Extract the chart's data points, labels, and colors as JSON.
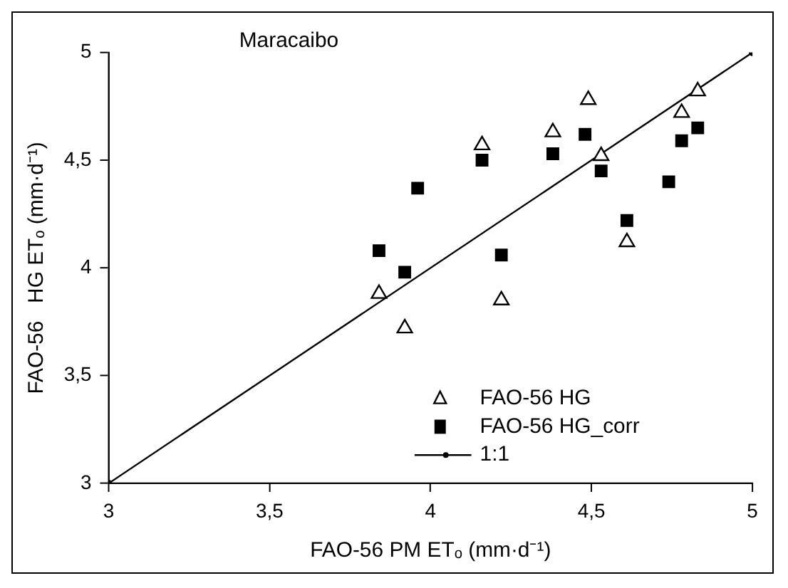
{
  "chart_data": {
    "type": "scatter",
    "title": "Maracaibo",
    "xlabel": "FAO-56 PM ETₒ (mm·d⁻¹)",
    "ylabel": "FAO-56   HG ETₒ (mm·d⁻¹)",
    "xlim": [
      3,
      5
    ],
    "ylim": [
      3,
      5
    ],
    "xticks": [
      3,
      {
        "value": 3.5,
        "label": "3,5"
      },
      4,
      {
        "value": 4.5,
        "label": "4,5"
      },
      5
    ],
    "yticks": [
      3,
      {
        "value": 3.5,
        "label": "3,5"
      },
      4,
      {
        "value": 4.5,
        "label": "4,5"
      },
      5
    ],
    "grid": false,
    "legend": "bottom right",
    "series": [
      {
        "name": "FAO-56 HG",
        "color": "#000000",
        "marker": "triangle",
        "x": [
          3.84,
          3.92,
          3.96,
          4.16,
          4.22,
          4.38,
          4.49,
          4.53,
          4.61,
          4.74,
          4.78,
          4.83
        ],
        "values": [
          3.88,
          3.72,
          null,
          4.57,
          3.85,
          4.63,
          4.78,
          4.52,
          4.12,
          null,
          4.72,
          4.82
        ]
      },
      {
        "name": "FAO-56 HG_corr",
        "color": "#000000",
        "marker": "square",
        "x": [
          3.84,
          3.92,
          3.96,
          4.16,
          4.22,
          4.38,
          4.48,
          4.53,
          4.61,
          4.74,
          4.78,
          4.83
        ],
        "values": [
          4.08,
          3.98,
          4.37,
          4.5,
          4.06,
          4.53,
          4.62,
          4.45,
          4.22,
          4.4,
          4.59,
          4.65
        ]
      },
      {
        "name": "1:1",
        "type": "line",
        "color": "#000000",
        "marker": "circle",
        "line_style": "solid",
        "x": [
          3,
          5
        ],
        "values": [
          3,
          5
        ]
      }
    ]
  }
}
